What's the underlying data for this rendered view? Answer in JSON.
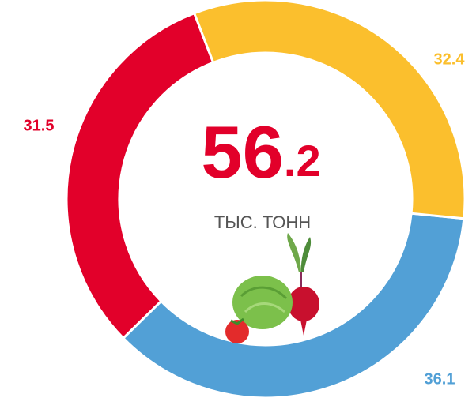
{
  "chart_data": {
    "type": "donut",
    "center_value": "56.2",
    "center_unit": "ТЫС. ТОНН",
    "values": [
      32.4,
      36.1,
      31.5
    ],
    "colors": [
      "#fbbf2d",
      "#52a0d6",
      "#e2002a"
    ]
  }
}
